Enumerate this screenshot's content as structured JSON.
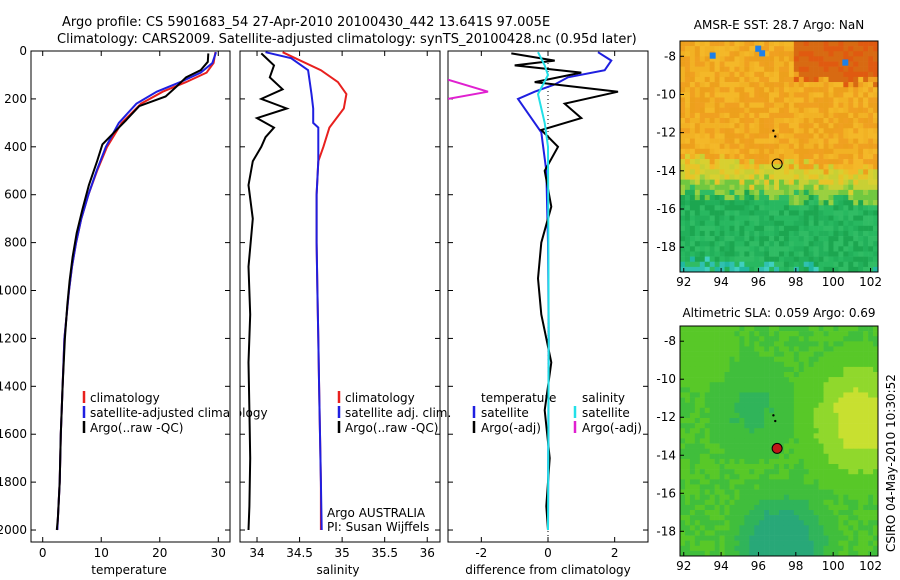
{
  "header": {
    "title_line1": "Argo profile: CS 5901683_54 27-Apr-2010 20100430_442 13.641S 97.005E",
    "title_line2": "Climatology: CARS2009. Satellite-adjusted climatology: synTS_20100428.nc (0.95d later)"
  },
  "footer": {
    "credit": "CSIRO 04-May-2010 10:30:52"
  },
  "colors": {
    "climatology": "#e8201e",
    "satellite": "#1f1fe0",
    "argo": "#000000",
    "sal_satellite": "#22e0e8",
    "sal_argo": "#e020d0",
    "frame": "#000000"
  },
  "chart_data": [
    {
      "type": "line",
      "id": "temperature",
      "xlabel": "temperature",
      "ylabel": "",
      "xlim": [
        -2,
        32
      ],
      "ylim": [
        2050,
        0
      ],
      "y_inverted": true,
      "xticks": [
        0,
        10,
        20,
        30
      ],
      "xtick_labels": [
        "0",
        "10",
        "20",
        "30"
      ],
      "yticks": [
        0,
        200,
        400,
        600,
        800,
        1000,
        1200,
        1400,
        1600,
        1800,
        2000
      ],
      "ytick_labels": [
        "0",
        "200",
        "400",
        "600",
        "800",
        "1000",
        "1200",
        "1400",
        "1600",
        "1800",
        "2000"
      ],
      "legend": [
        "climatology",
        "satellite-adjusted climatology",
        "Argo(..raw -QC)"
      ],
      "series": [
        {
          "name": "climatology",
          "color": "#e8201e",
          "x": [
            29.5,
            29.2,
            28.0,
            24.5,
            20.5,
            16.8,
            13.5,
            11.0,
            9.3,
            7.8,
            6.6,
            5.7,
            5.0,
            4.5,
            4.1,
            3.7,
            3.4,
            3.1,
            2.9,
            2.7,
            2.5
          ],
          "y": [
            5,
            50,
            90,
            130,
            170,
            220,
            300,
            400,
            500,
            600,
            700,
            800,
            900,
            1000,
            1100,
            1200,
            1400,
            1600,
            1800,
            1900,
            2000
          ]
        },
        {
          "name": "satellite-adjusted climatology",
          "color": "#1f1fe0",
          "x": [
            29.6,
            29.0,
            27.0,
            23.5,
            19.5,
            16.0,
            13.0,
            10.8,
            9.2,
            7.8,
            6.6,
            5.7,
            5.0,
            4.5,
            4.1,
            3.7,
            3.4,
            3.1,
            2.9,
            2.7,
            2.5
          ],
          "y": [
            5,
            50,
            90,
            130,
            170,
            220,
            300,
            400,
            500,
            600,
            700,
            800,
            900,
            1000,
            1100,
            1200,
            1400,
            1600,
            1800,
            1900,
            2000
          ]
        },
        {
          "name": "Argo(..raw -QC)",
          "color": "#000000",
          "x": [
            28.3,
            28.2,
            27.0,
            24.5,
            22.8,
            21.0,
            16.5,
            14.2,
            12.2,
            10.2,
            9.3,
            7.9,
            6.8,
            5.8,
            5.1,
            4.6,
            4.2,
            3.8,
            3.4,
            3.1,
            2.9,
            2.6,
            2.4
          ],
          "y": [
            10,
            45,
            80,
            110,
            150,
            190,
            230,
            290,
            340,
            390,
            460,
            560,
            660,
            760,
            860,
            960,
            1060,
            1200,
            1400,
            1600,
            1800,
            1950,
            2000
          ]
        }
      ]
    },
    {
      "type": "line",
      "id": "salinity",
      "xlabel": "salinity",
      "ylabel": "",
      "xlim": [
        33.8,
        36.15
      ],
      "ylim": [
        2050,
        0
      ],
      "y_inverted": true,
      "xticks": [
        34,
        34.5,
        35,
        35.5,
        36
      ],
      "xtick_labels": [
        "34",
        "34.5",
        "35",
        "35.5",
        "36"
      ],
      "legend": [
        "climatology",
        "satellite adj. clim.",
        "Argo(..raw -QC)"
      ],
      "annotation_lines": [
        "Argo AUSTRALIA",
        "PI: Susan Wijffels"
      ],
      "series": [
        {
          "name": "climatology",
          "color": "#e8201e",
          "x": [
            34.3,
            34.45,
            34.75,
            34.95,
            35.05,
            35.02,
            34.85,
            34.78,
            34.72,
            34.7,
            34.7,
            34.71,
            34.72,
            34.73,
            34.74,
            34.75,
            34.75
          ],
          "y": [
            5,
            30,
            80,
            130,
            180,
            240,
            320,
            400,
            460,
            600,
            800,
            1000,
            1200,
            1400,
            1600,
            1800,
            2000
          ]
        },
        {
          "name": "satellite adj. clim.",
          "color": "#1f1fe0",
          "x": [
            34.1,
            34.4,
            34.6,
            34.62,
            34.64,
            34.66,
            34.66,
            34.72,
            34.72,
            34.7,
            34.7,
            34.71,
            34.72,
            34.73,
            34.74,
            34.75,
            34.76
          ],
          "y": [
            5,
            30,
            80,
            130,
            180,
            240,
            300,
            320,
            460,
            600,
            800,
            1000,
            1200,
            1400,
            1600,
            1800,
            2000
          ]
        },
        {
          "name": "Argo(..raw -QC)",
          "color": "#000000",
          "x": [
            34.05,
            34.2,
            34.15,
            34.3,
            34.05,
            34.35,
            34.0,
            34.2,
            34.1,
            34.05,
            33.95,
            33.9,
            33.95,
            33.9,
            33.92,
            33.9,
            33.91,
            33.92,
            33.91,
            33.9
          ],
          "y": [
            10,
            60,
            110,
            160,
            200,
            240,
            280,
            320,
            360,
            400,
            460,
            560,
            700,
            900,
            1100,
            1300,
            1500,
            1700,
            1900,
            2000
          ]
        }
      ]
    },
    {
      "type": "line",
      "id": "difference",
      "xlabel": "difference from climatology",
      "ylabel": "",
      "xlim": [
        -3,
        3
      ],
      "ylim": [
        2050,
        0
      ],
      "y_inverted": true,
      "xticks": [
        -2,
        0,
        2
      ],
      "xtick_labels": [
        "-2",
        "0",
        "2"
      ],
      "legend_left": {
        "heading": "temperature",
        "items": [
          "satellite",
          "Argo(-adj)"
        ]
      },
      "legend_right": {
        "heading": "salinity",
        "items": [
          "satellite",
          "Argo(-adj)"
        ]
      },
      "series": [
        {
          "name": "temperature satellite",
          "color": "#1f1fe0",
          "x": [
            1.5,
            1.9,
            1.7,
            0.6,
            0.2,
            -0.4,
            -0.9,
            -0.6,
            -0.2,
            -0.05,
            0.0,
            0.02,
            0.0
          ],
          "y": [
            5,
            40,
            80,
            110,
            140,
            170,
            200,
            260,
            340,
            500,
            800,
            1200,
            2000
          ]
        },
        {
          "name": "temperature Argo(-adj)",
          "color": "#000000",
          "x": [
            -1.1,
            0.2,
            -1.0,
            1.0,
            -0.4,
            2.1,
            0.5,
            1.0,
            -0.2,
            0.3,
            -0.1,
            0.1,
            -0.2,
            -0.3,
            -0.2,
            0.1,
            -0.1,
            0.05,
            -0.05,
            0.0
          ],
          "y": [
            10,
            40,
            60,
            90,
            130,
            170,
            220,
            280,
            330,
            400,
            500,
            650,
            800,
            950,
            1100,
            1300,
            1500,
            1700,
            1900,
            2000
          ]
        },
        {
          "name": "salinity satellite",
          "color": "#22e0e8",
          "x": [
            -0.3,
            -0.1,
            0.0,
            -0.3,
            -0.1,
            0.0,
            0.01,
            0.02,
            0.0
          ],
          "y": [
            5,
            60,
            100,
            180,
            300,
            400,
            700,
            1200,
            2000
          ]
        },
        {
          "name": "salinity Argo(-adj)",
          "color": "#e020d0",
          "x": [
            -3.0,
            -1.8,
            -3.0
          ],
          "y": [
            120,
            170,
            200
          ]
        }
      ]
    },
    {
      "type": "heatmap",
      "id": "amsre-sst",
      "title": "AMSR-E SST: 28.7  Argo: NaN",
      "xlim": [
        91.8,
        102.4
      ],
      "ylim": [
        -19.3,
        -7.2
      ],
      "xticks": [
        92,
        94,
        96,
        98,
        100,
        102
      ],
      "xtick_labels": [
        "92",
        "94",
        "96",
        "98",
        "100",
        "102"
      ],
      "yticks": [
        -8,
        -10,
        -12,
        -14,
        -16,
        -18
      ],
      "ytick_labels": [
        "-8",
        "-10",
        "-12",
        "-14",
        "-16",
        "-18"
      ],
      "profile_position": [
        97.0,
        -13.64
      ],
      "track": [
        [
          96.8,
          -11.9
        ],
        [
          96.9,
          -12.2
        ]
      ]
    },
    {
      "type": "heatmap",
      "id": "altimetric-sla",
      "title": "Altimetric SLA: 0.059  Argo: 0.69",
      "xlim": [
        91.8,
        102.4
      ],
      "ylim": [
        -19.3,
        -7.2
      ],
      "xticks": [
        92,
        94,
        96,
        98,
        100,
        102
      ],
      "xtick_labels": [
        "92",
        "94",
        "96",
        "98",
        "100",
        "102"
      ],
      "yticks": [
        -8,
        -10,
        -12,
        -14,
        -16,
        -18
      ],
      "ytick_labels": [
        "-8",
        "-10",
        "-12",
        "-14",
        "-16",
        "-18"
      ],
      "profile_position": [
        97.0,
        -13.64
      ],
      "track": [
        [
          96.8,
          -11.9
        ],
        [
          96.9,
          -12.2
        ]
      ]
    }
  ]
}
